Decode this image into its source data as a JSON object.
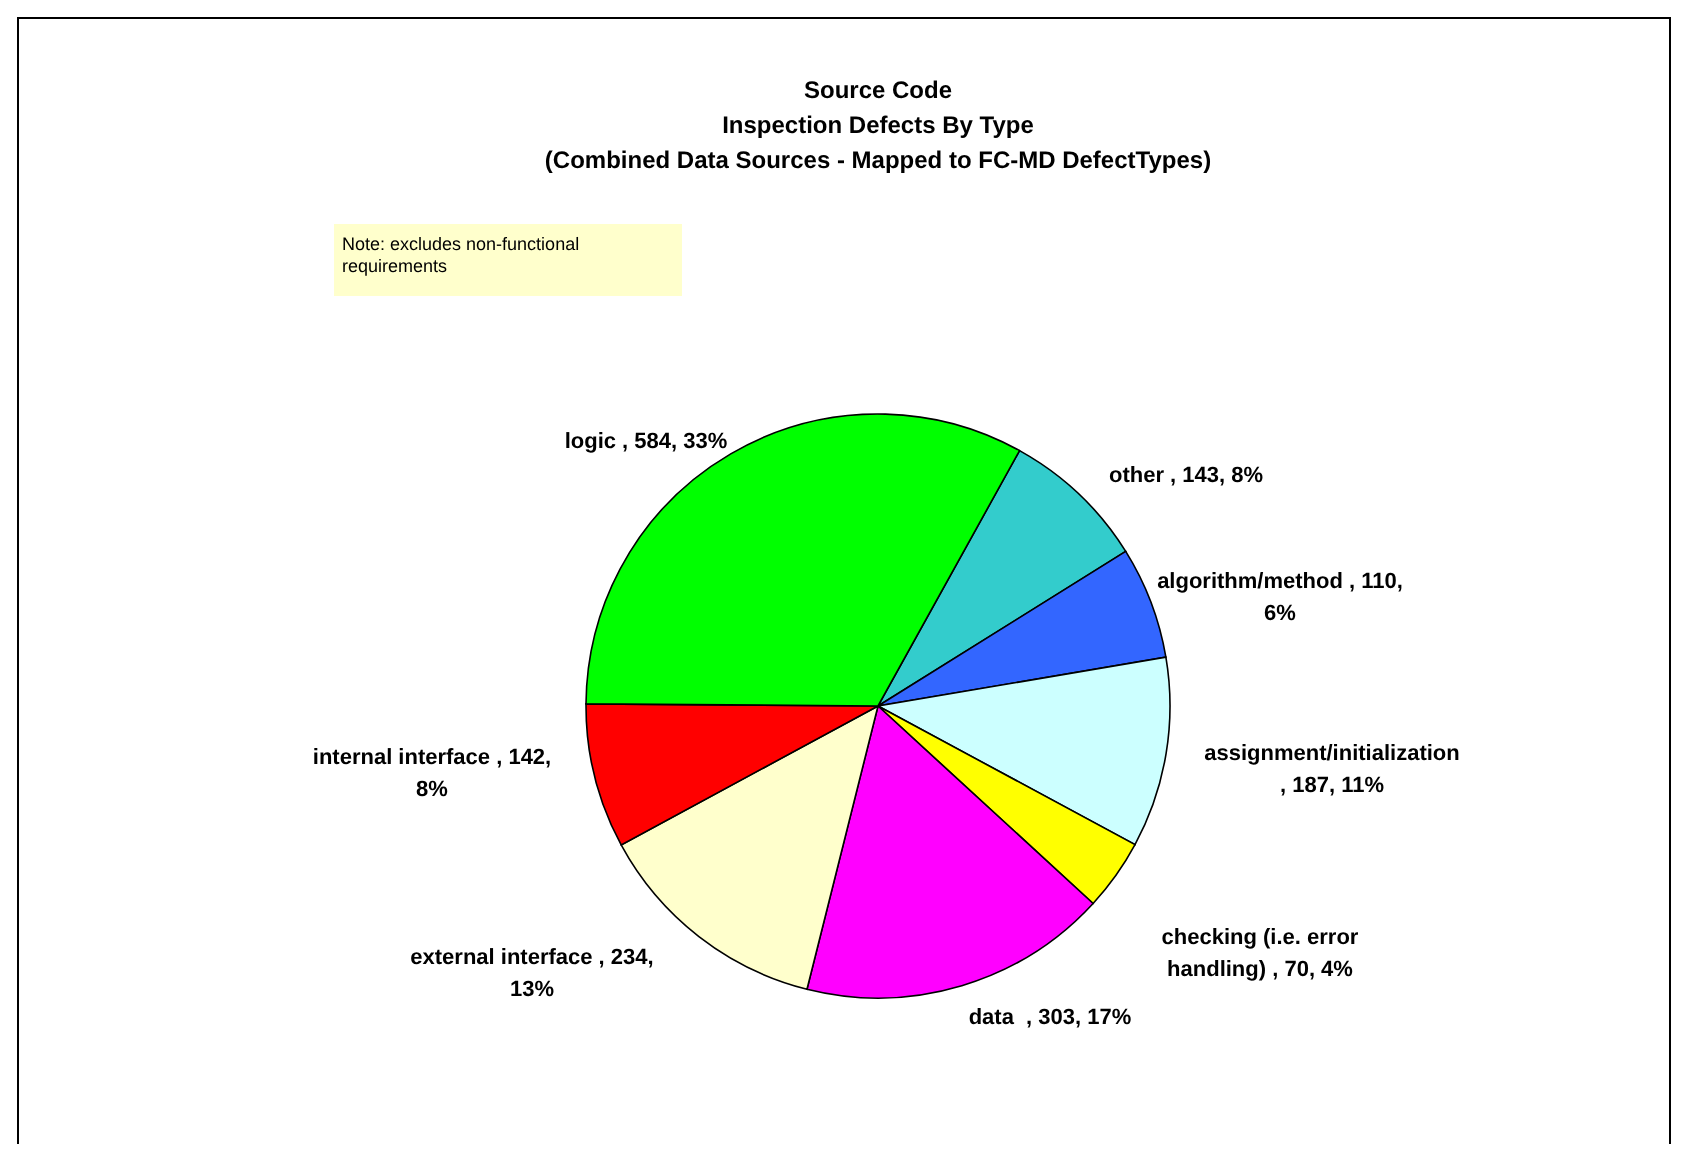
{
  "chart_data": {
    "type": "pie",
    "title": "Source Code\nInspection Defects By Type\n(Combined Data Sources - Mapped to FC-MD DefectTypes)",
    "annotations": [
      "Note: excludes non-functional requirements"
    ],
    "categories": [
      "other",
      "algorithm/method",
      "assignment/initialization",
      "checking (i.e. error handling)",
      "data ",
      "external interface",
      "internal interface",
      "logic"
    ],
    "values": [
      143,
      110,
      187,
      70,
      303,
      234,
      142,
      584
    ],
    "value_labels": [
      ", 143, 8%",
      ", 110, 6%",
      ", 187, 11%",
      ", 70, 4%",
      ", 303, 17%",
      ", 234, 13%",
      ", 142, 8%",
      ", 584, 33%"
    ],
    "colors": [
      "#33cccc",
      "#3366ff",
      "#ccffff",
      "#ffff00",
      "#ff00ff",
      "#ffffcc",
      "#ff0000",
      "#00ff00"
    ]
  }
}
